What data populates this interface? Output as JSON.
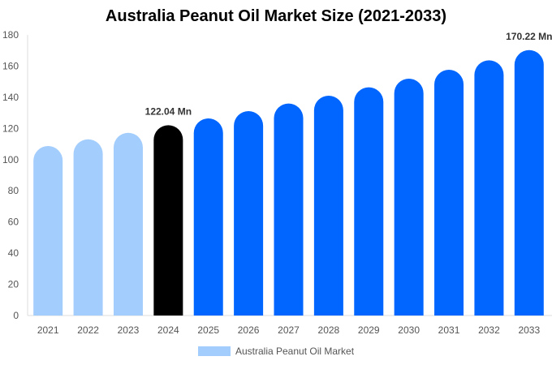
{
  "chart_data": {
    "type": "bar",
    "title": "Australia Peanut Oil Market Size (2021-2033)",
    "categories": [
      "2021",
      "2022",
      "2023",
      "2024",
      "2025",
      "2026",
      "2027",
      "2028",
      "2029",
      "2030",
      "2031",
      "2032",
      "2033"
    ],
    "values": [
      108.7,
      113.0,
      117.2,
      122.04,
      126.4,
      131.1,
      136.0,
      141.0,
      146.4,
      151.9,
      157.6,
      163.7,
      170.22
    ],
    "bar_colors": [
      "#a3cdfd",
      "#a3cdfd",
      "#a3cdfd",
      "#000000",
      "#0066ff",
      "#0066ff",
      "#0066ff",
      "#0066ff",
      "#0066ff",
      "#0066ff",
      "#0066ff",
      "#0066ff",
      "#0066ff"
    ],
    "data_labels": {
      "2024": "122.04 Mn",
      "2033": "170.22 Mn"
    },
    "ylim": [
      0,
      180
    ],
    "yticks": [
      0,
      20,
      40,
      60,
      80,
      100,
      120,
      140,
      160,
      180
    ],
    "grid": false,
    "legend": {
      "position": "bottom",
      "entries": [
        {
          "name": "Australia Peanut Oil Market",
          "color": "#a3cdfd"
        }
      ]
    },
    "xlabel": "",
    "ylabel": ""
  }
}
